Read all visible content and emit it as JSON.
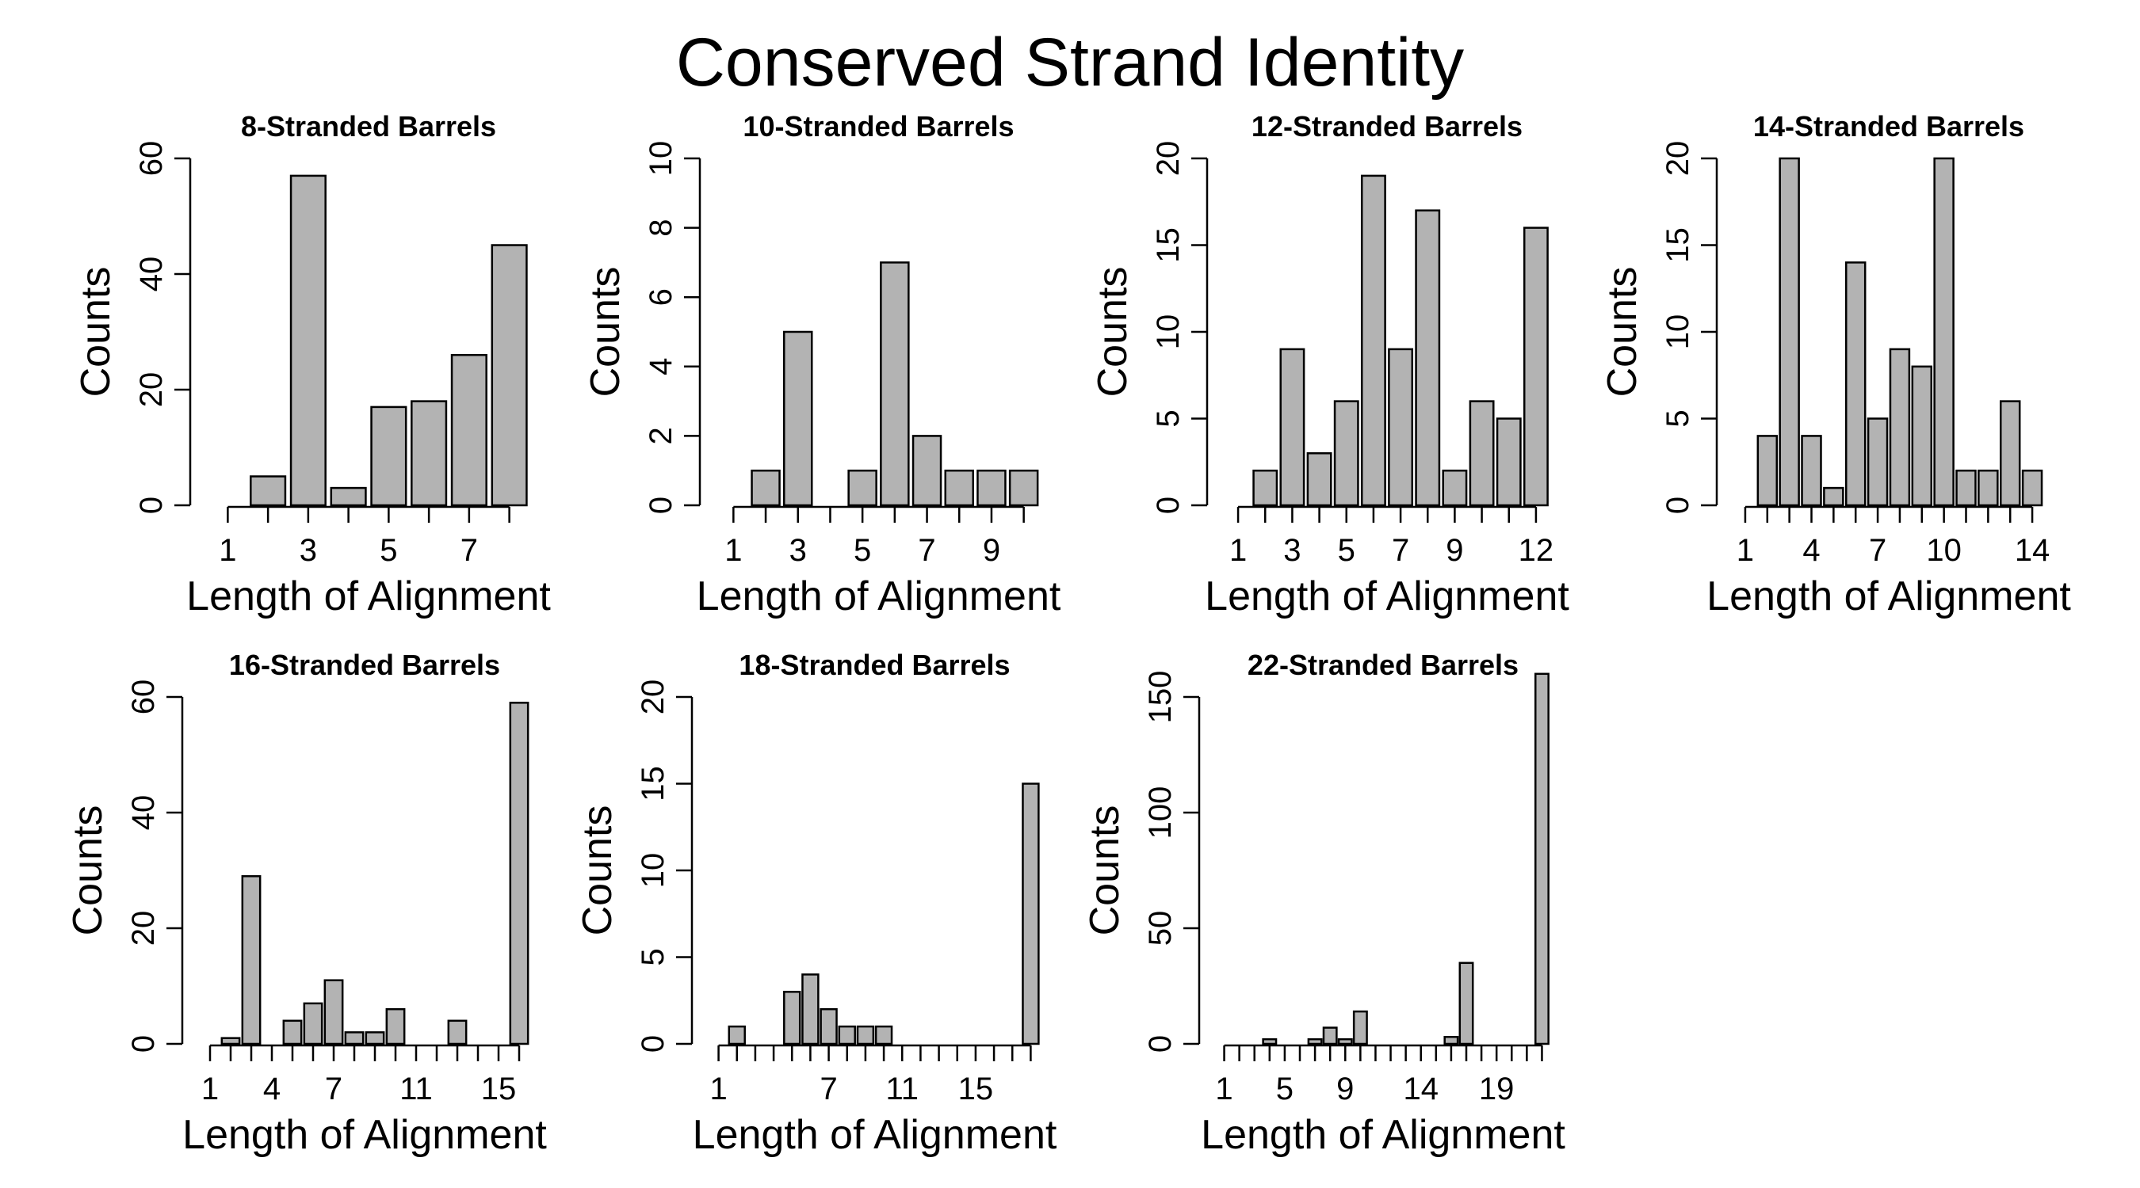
{
  "title": "Conserved Strand Identity",
  "chart_data": [
    {
      "type": "bar",
      "title": "8-Stranded Barrels",
      "xlabel": "Length of Alignment",
      "ylabel": "Counts",
      "categories": [
        "1",
        "2",
        "3",
        "4",
        "5",
        "6",
        "7",
        "8"
      ],
      "x_tick_labels": [
        "1",
        "3",
        "5",
        "7"
      ],
      "values": [
        0,
        5,
        57,
        3,
        17,
        18,
        26,
        45
      ],
      "ylim": [
        0,
        60
      ],
      "y_ticks": [
        0,
        20,
        40,
        60
      ]
    },
    {
      "type": "bar",
      "title": "10-Stranded Barrels",
      "xlabel": "Length of Alignment",
      "ylabel": "Counts",
      "categories": [
        "1",
        "2",
        "3",
        "4",
        "5",
        "6",
        "7",
        "8",
        "9",
        "10"
      ],
      "x_tick_labels": [
        "1",
        "3",
        "5",
        "7",
        "9"
      ],
      "values": [
        0,
        1,
        5,
        0,
        1,
        7,
        2,
        1,
        1,
        1
      ],
      "ylim": [
        0,
        10
      ],
      "y_ticks": [
        0,
        2,
        4,
        6,
        8,
        10
      ]
    },
    {
      "type": "bar",
      "title": "12-Stranded Barrels",
      "xlabel": "Length of Alignment",
      "ylabel": "Counts",
      "categories": [
        "1",
        "2",
        "3",
        "4",
        "5",
        "6",
        "7",
        "8",
        "9",
        "10",
        "11",
        "12"
      ],
      "x_tick_labels": [
        "1",
        "3",
        "5",
        "7",
        "9",
        "12"
      ],
      "values": [
        0,
        2,
        9,
        3,
        6,
        19,
        9,
        17,
        2,
        6,
        5,
        16
      ],
      "ylim": [
        0,
        20
      ],
      "y_ticks": [
        0,
        5,
        10,
        15,
        20
      ]
    },
    {
      "type": "bar",
      "title": "14-Stranded Barrels",
      "xlabel": "Length of Alignment",
      "ylabel": "Counts",
      "categories": [
        "1",
        "2",
        "3",
        "4",
        "5",
        "6",
        "7",
        "8",
        "9",
        "10",
        "11",
        "12",
        "13",
        "14"
      ],
      "x_tick_labels": [
        "1",
        "4",
        "7",
        "10",
        "14"
      ],
      "values": [
        0,
        4,
        20,
        4,
        1,
        14,
        5,
        9,
        8,
        20,
        2,
        2,
        6,
        2
      ],
      "ylim": [
        0,
        20
      ],
      "y_ticks": [
        0,
        5,
        10,
        15,
        20
      ]
    },
    {
      "type": "bar",
      "title": "16-Stranded Barrels",
      "xlabel": "Length of Alignment",
      "ylabel": "Counts",
      "categories": [
        "1",
        "2",
        "3",
        "4",
        "5",
        "6",
        "7",
        "8",
        "9",
        "10",
        "11",
        "12",
        "13",
        "14",
        "15",
        "16"
      ],
      "x_tick_labels": [
        "1",
        "4",
        "7",
        "11",
        "15"
      ],
      "values": [
        0,
        1,
        29,
        0,
        4,
        7,
        11,
        2,
        2,
        6,
        0,
        0,
        4,
        0,
        0,
        59
      ],
      "ylim": [
        0,
        60
      ],
      "y_ticks": [
        0,
        20,
        40,
        60
      ]
    },
    {
      "type": "bar",
      "title": "18-Stranded Barrels",
      "xlabel": "Length of Alignment",
      "ylabel": "Counts",
      "categories": [
        "1",
        "2",
        "3",
        "4",
        "5",
        "6",
        "7",
        "8",
        "9",
        "10",
        "11",
        "12",
        "13",
        "14",
        "15",
        "16",
        "17",
        "18"
      ],
      "x_tick_labels": [
        "1",
        "7",
        "11",
        "15"
      ],
      "values": [
        0,
        1,
        0,
        0,
        3,
        4,
        2,
        1,
        1,
        1,
        0,
        0,
        0,
        0,
        0,
        0,
        0,
        15
      ],
      "ylim": [
        0,
        20
      ],
      "y_ticks": [
        0,
        5,
        10,
        15,
        20
      ]
    },
    {
      "type": "bar",
      "title": "22-Stranded Barrels",
      "xlabel": "Length of Alignment",
      "ylabel": "Counts",
      "categories": [
        "1",
        "2",
        "3",
        "4",
        "5",
        "6",
        "7",
        "8",
        "9",
        "10",
        "11",
        "12",
        "13",
        "14",
        "15",
        "16",
        "17",
        "18",
        "19",
        "20",
        "21",
        "22"
      ],
      "x_tick_labels": [
        "1",
        "5",
        "9",
        "14",
        "19"
      ],
      "values": [
        0,
        0,
        0,
        2,
        0,
        0,
        2,
        7,
        2,
        14,
        0,
        0,
        0,
        0,
        0,
        3,
        35,
        0,
        0,
        0,
        0,
        160
      ],
      "ylim": [
        0,
        150
      ],
      "y_ticks": [
        0,
        50,
        100,
        150
      ]
    }
  ]
}
